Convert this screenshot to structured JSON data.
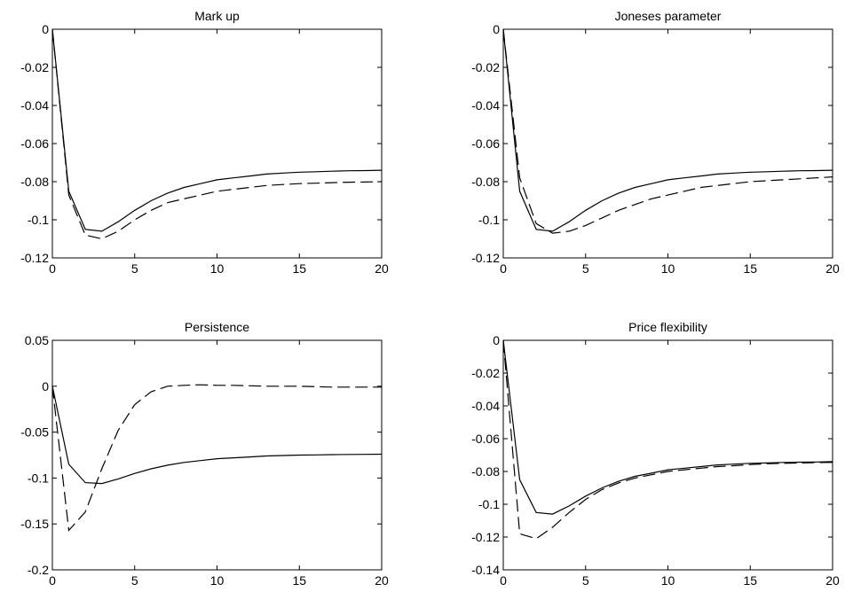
{
  "chart_data": [
    {
      "type": "line",
      "title": "Mark up",
      "xlim": [
        0,
        20
      ],
      "ylim": [
        -0.12,
        0
      ],
      "xticks": [
        0,
        5,
        10,
        15,
        20
      ],
      "xtick_labels": [
        "0",
        "5",
        "10",
        "15",
        "20"
      ],
      "yticks": [
        0,
        -0.02,
        -0.04,
        -0.06,
        -0.08,
        -0.1,
        -0.12
      ],
      "ytick_labels": [
        "0",
        "-0.02",
        "-0.04",
        "-0.06",
        "-0.08",
        "-0.1",
        "-0.12"
      ],
      "grid": false,
      "series": [
        {
          "style": "solid",
          "x": [
            0,
            1,
            2,
            3,
            4,
            5,
            6,
            7,
            8,
            9,
            10,
            11,
            12,
            13,
            14,
            15,
            16,
            17,
            18,
            19,
            20
          ],
          "y": [
            0,
            -0.085,
            -0.105,
            -0.106,
            -0.101,
            -0.095,
            -0.09,
            -0.086,
            -0.083,
            -0.081,
            -0.079,
            -0.078,
            -0.077,
            -0.076,
            -0.0755,
            -0.075,
            -0.0748,
            -0.0745,
            -0.0743,
            -0.0742,
            -0.074
          ]
        },
        {
          "style": "dashed",
          "x": [
            0,
            1,
            2,
            3,
            4,
            5,
            6,
            7,
            8,
            9,
            10,
            11,
            12,
            13,
            14,
            15,
            16,
            17,
            18,
            19,
            20
          ],
          "y": [
            0,
            -0.087,
            -0.108,
            -0.11,
            -0.106,
            -0.1,
            -0.095,
            -0.091,
            -0.089,
            -0.087,
            -0.085,
            -0.084,
            -0.083,
            -0.082,
            -0.0815,
            -0.081,
            -0.0808,
            -0.0805,
            -0.0803,
            -0.0802,
            -0.08
          ]
        }
      ]
    },
    {
      "type": "line",
      "title": "Joneses parameter",
      "xlim": [
        0,
        20
      ],
      "ylim": [
        -0.12,
        0
      ],
      "xticks": [
        0,
        5,
        10,
        15,
        20
      ],
      "xtick_labels": [
        "0",
        "5",
        "10",
        "15",
        "20"
      ],
      "yticks": [
        0,
        -0.02,
        -0.04,
        -0.06,
        -0.08,
        -0.1,
        -0.12
      ],
      "ytick_labels": [
        "0",
        "-0.02",
        "-0.04",
        "-0.06",
        "-0.08",
        "-0.1",
        "-0.12"
      ],
      "grid": false,
      "series": [
        {
          "style": "solid",
          "x": [
            0,
            1,
            2,
            3,
            4,
            5,
            6,
            7,
            8,
            9,
            10,
            11,
            12,
            13,
            14,
            15,
            16,
            17,
            18,
            19,
            20
          ],
          "y": [
            0,
            -0.085,
            -0.105,
            -0.106,
            -0.101,
            -0.095,
            -0.09,
            -0.086,
            -0.083,
            -0.081,
            -0.079,
            -0.078,
            -0.077,
            -0.076,
            -0.0755,
            -0.075,
            -0.0748,
            -0.0745,
            -0.0743,
            -0.0742,
            -0.074
          ]
        },
        {
          "style": "dashed",
          "x": [
            0,
            1,
            2,
            3,
            4,
            5,
            6,
            7,
            8,
            9,
            10,
            11,
            12,
            13,
            14,
            15,
            16,
            17,
            18,
            19,
            20
          ],
          "y": [
            0,
            -0.078,
            -0.102,
            -0.107,
            -0.106,
            -0.103,
            -0.099,
            -0.095,
            -0.092,
            -0.089,
            -0.087,
            -0.085,
            -0.083,
            -0.082,
            -0.081,
            -0.08,
            -0.0795,
            -0.079,
            -0.0785,
            -0.078,
            -0.0775
          ]
        }
      ]
    },
    {
      "type": "line",
      "title": "Persistence",
      "xlim": [
        0,
        20
      ],
      "ylim": [
        -0.2,
        0.05
      ],
      "xticks": [
        0,
        5,
        10,
        15,
        20
      ],
      "xtick_labels": [
        "0",
        "5",
        "10",
        "15",
        "20"
      ],
      "yticks": [
        0.05,
        0,
        -0.05,
        -0.1,
        -0.15,
        -0.2
      ],
      "ytick_labels": [
        "0.05",
        "0",
        "-0.05",
        "-0.1",
        "-0.15",
        "-0.2"
      ],
      "grid": false,
      "series": [
        {
          "style": "solid",
          "x": [
            0,
            1,
            2,
            3,
            4,
            5,
            6,
            7,
            8,
            9,
            10,
            11,
            12,
            13,
            14,
            15,
            16,
            17,
            18,
            19,
            20
          ],
          "y": [
            0,
            -0.085,
            -0.105,
            -0.106,
            -0.101,
            -0.095,
            -0.09,
            -0.086,
            -0.083,
            -0.081,
            -0.079,
            -0.078,
            -0.077,
            -0.076,
            -0.0755,
            -0.075,
            -0.0748,
            -0.0745,
            -0.0743,
            -0.0742,
            -0.074
          ]
        },
        {
          "style": "dashed",
          "x": [
            0,
            1,
            2,
            3,
            4,
            5,
            6,
            7,
            8,
            9,
            10,
            11,
            12,
            13,
            14,
            15,
            16,
            17,
            18,
            19,
            20
          ],
          "y": [
            0,
            -0.157,
            -0.137,
            -0.09,
            -0.048,
            -0.02,
            -0.006,
            0,
            0.001,
            0.0015,
            0.001,
            0.001,
            0.0005,
            0,
            0,
            0,
            -0.0005,
            -0.001,
            -0.001,
            -0.001,
            -0.001
          ]
        }
      ]
    },
    {
      "type": "line",
      "title": "Price flexibility",
      "xlim": [
        0,
        20
      ],
      "ylim": [
        -0.14,
        0
      ],
      "xticks": [
        0,
        5,
        10,
        15,
        20
      ],
      "xtick_labels": [
        "0",
        "5",
        "10",
        "15",
        "20"
      ],
      "yticks": [
        0,
        -0.02,
        -0.04,
        -0.06,
        -0.08,
        -0.1,
        -0.12,
        -0.14
      ],
      "ytick_labels": [
        "0",
        "-0.02",
        "-0.04",
        "-0.06",
        "-0.08",
        "-0.1",
        "-0.12",
        "-0.14"
      ],
      "grid": false,
      "series": [
        {
          "style": "solid",
          "x": [
            0,
            1,
            2,
            3,
            4,
            5,
            6,
            7,
            8,
            9,
            10,
            11,
            12,
            13,
            14,
            15,
            16,
            17,
            18,
            19,
            20
          ],
          "y": [
            0,
            -0.085,
            -0.105,
            -0.106,
            -0.101,
            -0.095,
            -0.09,
            -0.086,
            -0.083,
            -0.081,
            -0.079,
            -0.078,
            -0.077,
            -0.076,
            -0.0755,
            -0.075,
            -0.0748,
            -0.0745,
            -0.0743,
            -0.0742,
            -0.074
          ]
        },
        {
          "style": "dashed",
          "x": [
            0,
            1,
            2,
            3,
            4,
            5,
            6,
            7,
            8,
            9,
            10,
            11,
            12,
            13,
            14,
            15,
            16,
            17,
            18,
            19,
            20
          ],
          "y": [
            0,
            -0.118,
            -0.121,
            -0.114,
            -0.105,
            -0.097,
            -0.091,
            -0.087,
            -0.084,
            -0.082,
            -0.08,
            -0.079,
            -0.078,
            -0.077,
            -0.0765,
            -0.0758,
            -0.0753,
            -0.075,
            -0.0748,
            -0.0746,
            -0.0745
          ]
        }
      ]
    }
  ]
}
